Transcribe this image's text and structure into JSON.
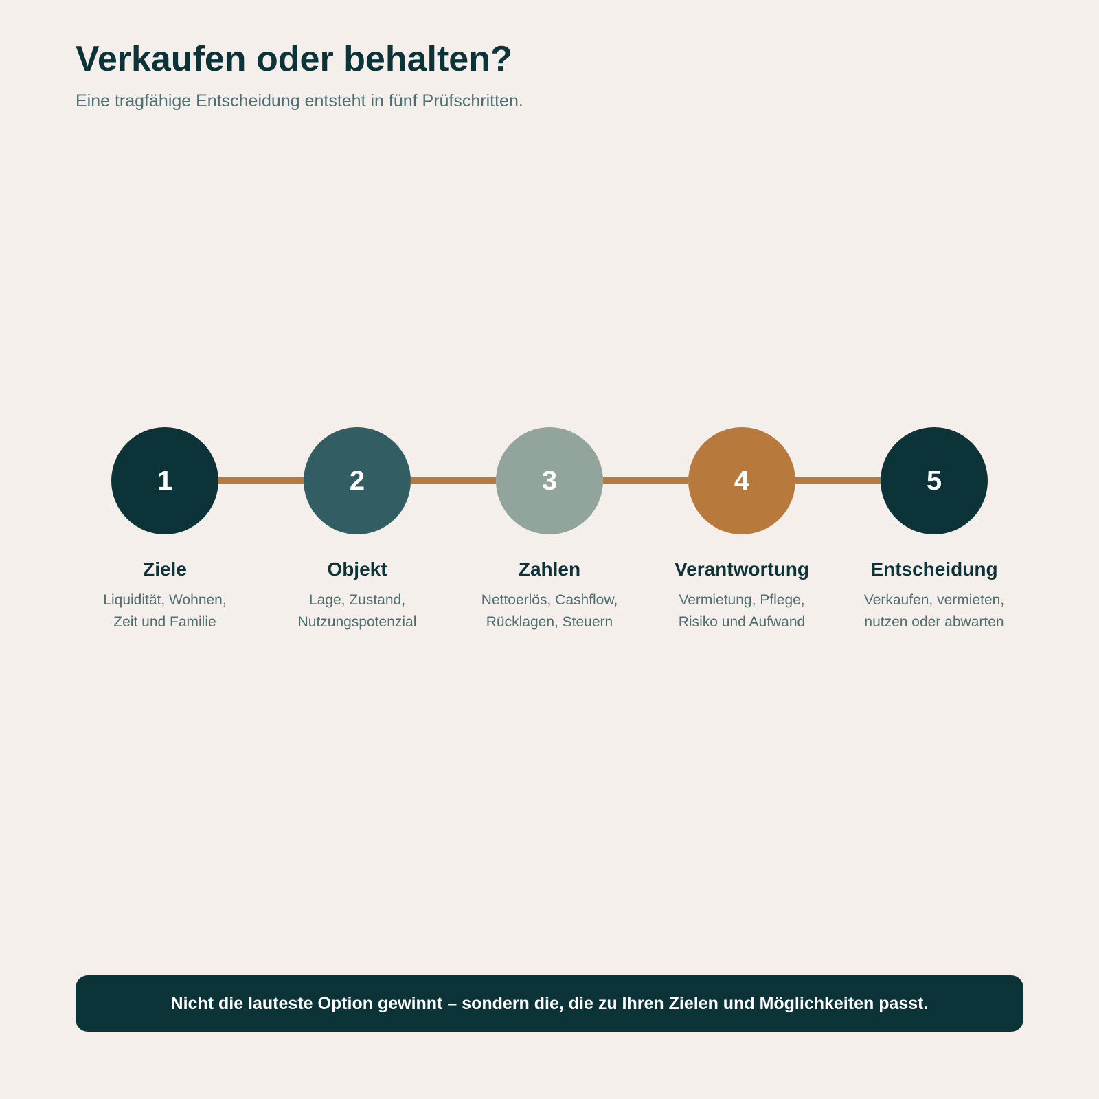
{
  "header": {
    "title": "Verkaufen oder behalten?",
    "subtitle": "Eine tragfähige Entscheidung entsteht in fünf Prüfschritten."
  },
  "colors": {
    "background": "#f4efea",
    "connector": "#b8793d",
    "dark": "#0c3338"
  },
  "steps": [
    {
      "number": "1",
      "title": "Ziele",
      "description": "Liquidität, Wohnen,\nZeit und Familie",
      "color": "#0c3338"
    },
    {
      "number": "2",
      "title": "Objekt",
      "description": "Lage, Zustand,\nNutzungspotenzial",
      "color": "#325d62"
    },
    {
      "number": "3",
      "title": "Zahlen",
      "description": "Nettoerlös, Cashflow,\nRücklagen, Steuern",
      "color": "#91a59c"
    },
    {
      "number": "4",
      "title": "Verantwortung",
      "description": "Vermietung, Pflege,\nRisiko und Aufwand",
      "color": "#b8793d"
    },
    {
      "number": "5",
      "title": "Entscheidung",
      "description": "Verkaufen, vermieten,\nnutzen oder abwarten",
      "color": "#0c3338"
    }
  ],
  "footer": {
    "text": "Nicht die lauteste Option gewinnt – sondern die, die zu Ihren Zielen und Möglichkeiten passt."
  }
}
